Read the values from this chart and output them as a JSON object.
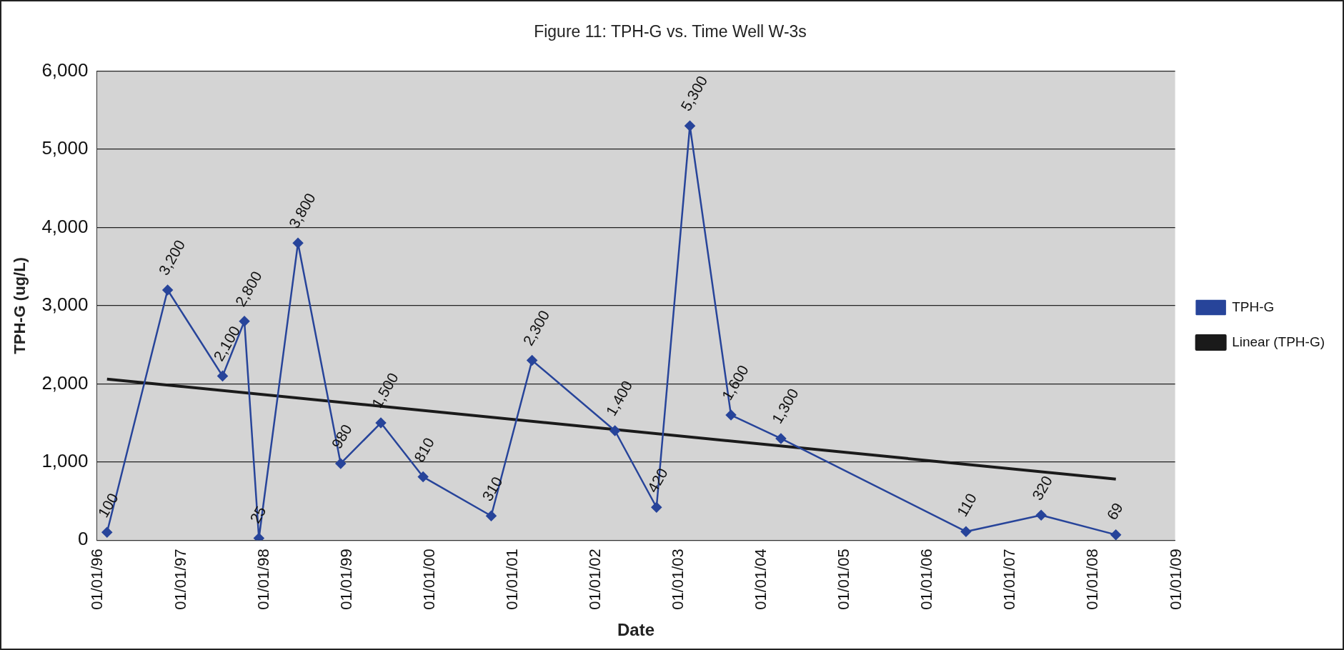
{
  "chart_data": {
    "type": "line",
    "title": "Figure 11: TPH-G vs. Time Well W-3s",
    "xlabel": "Date",
    "ylabel": "TPH-G (ug/L)",
    "xlim": [
      "1996-01-01",
      "2009-01-01"
    ],
    "xticks": [
      {
        "value": "1996-01-01",
        "label": "01/01/96"
      },
      {
        "value": "1997-01-01",
        "label": "01/01/97"
      },
      {
        "value": "1998-01-01",
        "label": "01/01/98"
      },
      {
        "value": "1999-01-01",
        "label": "01/01/99"
      },
      {
        "value": "2000-01-01",
        "label": "01/01/00"
      },
      {
        "value": "2001-01-01",
        "label": "01/01/01"
      },
      {
        "value": "2002-01-01",
        "label": "01/01/02"
      },
      {
        "value": "2003-01-01",
        "label": "01/01/03"
      },
      {
        "value": "2004-01-01",
        "label": "01/01/04"
      },
      {
        "value": "2005-01-01",
        "label": "01/01/05"
      },
      {
        "value": "2006-01-01",
        "label": "01/01/06"
      },
      {
        "value": "2007-01-01",
        "label": "01/01/07"
      },
      {
        "value": "2008-01-01",
        "label": "01/01/08"
      },
      {
        "value": "2009-01-01",
        "label": "01/01/09"
      }
    ],
    "ylim": [
      0,
      6000
    ],
    "yticks": [
      0,
      {
        "value": 1000,
        "label": "1,000"
      },
      {
        "value": 2000,
        "label": "2,000"
      },
      {
        "value": 3000,
        "label": "3,000"
      },
      {
        "value": 4000,
        "label": "4,000"
      },
      {
        "value": 5000,
        "label": "5,000"
      },
      {
        "value": 6000,
        "label": "6,000"
      }
    ],
    "grid": "y",
    "legend": "right",
    "series": [
      {
        "name": "TPH-G",
        "color": "#27449a",
        "marker": "diamond",
        "x": [
          "1996-02-15",
          "1996-11-08",
          "1997-07-08",
          "1997-10-12",
          "1997-12-15",
          "1998-06-05",
          "1998-12-10",
          "1999-06-05",
          "1999-12-08",
          "2000-10-03",
          "2001-04-01",
          "2002-04-01",
          "2002-10-01",
          "2003-02-25",
          "2003-08-25",
          "2004-04-01",
          "2006-06-25",
          "2007-05-22",
          "2008-04-15"
        ],
        "values": [
          100,
          3200,
          2100,
          2800,
          25,
          3800,
          980,
          1500,
          810,
          310,
          2300,
          1400,
          420,
          5300,
          1600,
          1300,
          110,
          320,
          69
        ],
        "value_labels": [
          "100",
          "3,200",
          "2,100",
          "2,800",
          "25",
          "3,800",
          "980",
          "1,500",
          "810",
          "310",
          "2,300",
          "1,400",
          "420",
          "5,300",
          "1,600",
          "1,300",
          "110",
          "320",
          "69"
        ]
      },
      {
        "name": "Linear (TPH-G)",
        "type": "line",
        "color": "#1a1a1a",
        "marker": "none",
        "x": [
          "1996-02-15",
          "2008-04-15"
        ],
        "values": [
          2060,
          780
        ]
      }
    ]
  }
}
